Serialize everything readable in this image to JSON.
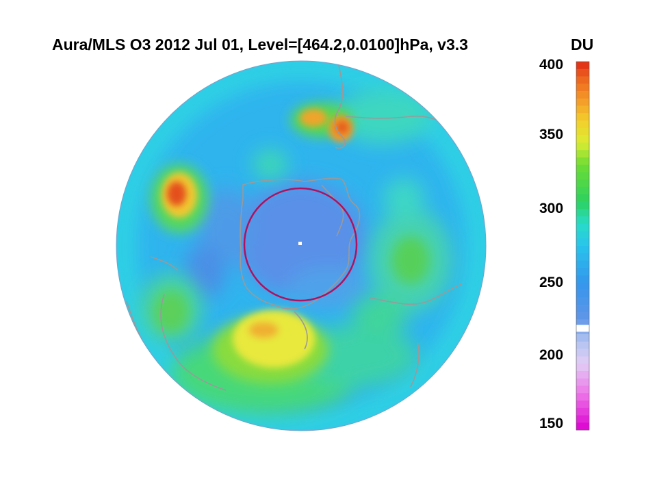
{
  "title": "Aura/MLS O3 2012 Jul 01, Level=[464.2,0.0100]hPa, v3.3",
  "colorbar": {
    "units": "DU",
    "min": 150,
    "max": 400,
    "ticks": [
      "400",
      "350",
      "300",
      "250",
      "200",
      "150"
    ],
    "gap_value": 219
  },
  "colors": {
    "base_field": "#2fb4ee",
    "low_ozone": "#5a8ee6",
    "green": "#3ed44a",
    "yellow": "#ece83a",
    "orange": "#f29a2c",
    "red": "#e2461e",
    "coastline": "#9a9a9a",
    "polar_circle": "#b0105e"
  }
}
